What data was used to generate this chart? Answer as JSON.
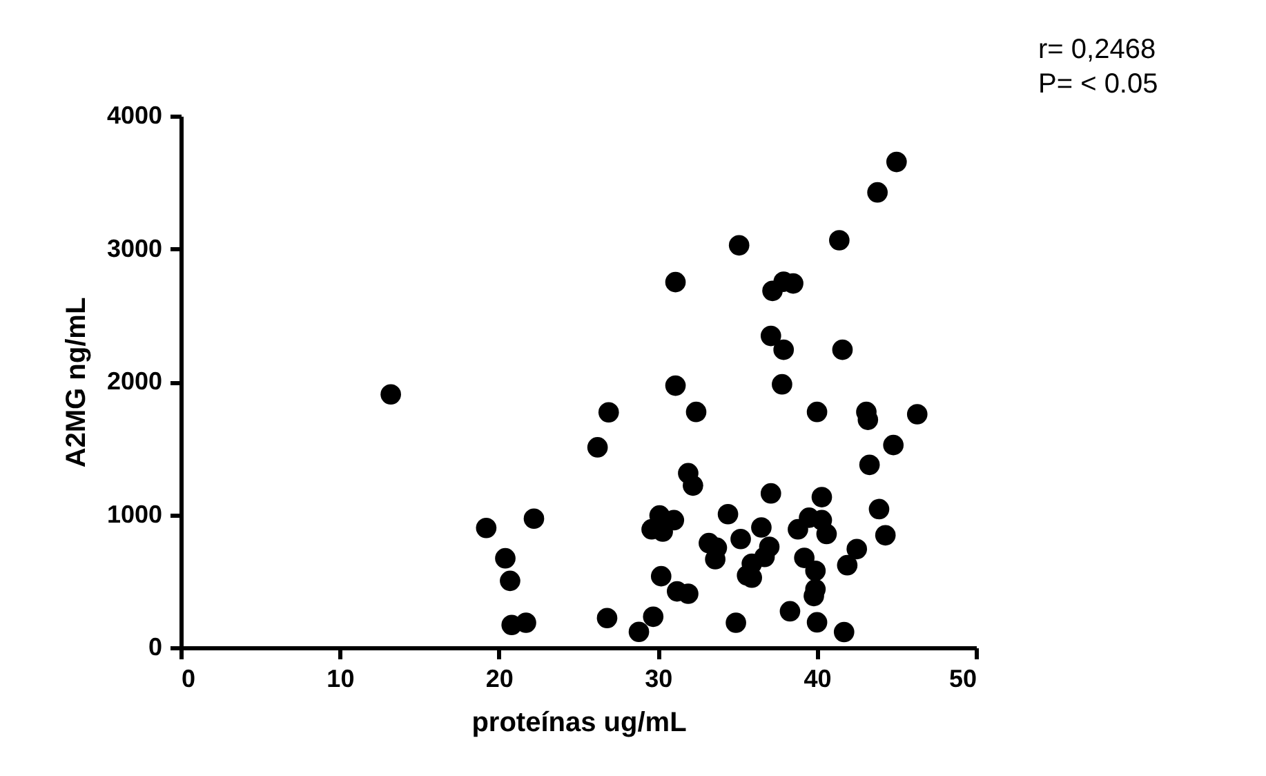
{
  "chart_data": {
    "type": "scatter",
    "xlabel": "proteínas ug/mL",
    "ylabel": "A2MG ng/mL",
    "annotations": [
      "r= 0,2468",
      "P= < 0.05"
    ],
    "xlim": [
      0,
      50
    ],
    "xticks": [
      0,
      10,
      20,
      30,
      40,
      50
    ],
    "ylim": [
      0,
      4000
    ],
    "yticks": [
      0,
      1000,
      2000,
      3000,
      4000
    ],
    "grid": false,
    "legend": false,
    "marker": "circle",
    "series": [
      {
        "color": "#000000",
        "x": [
          13.2,
          19.2,
          22.2,
          20.4,
          20.7,
          20.8,
          21.7,
          26.9,
          26.2,
          26.8,
          28.8,
          29.7,
          31.1,
          31.1,
          30.1,
          31.0,
          29.6,
          30.3,
          30.2,
          31.2,
          31.9,
          31.9,
          32.2,
          45.0,
          43.8,
          35.1,
          41.4,
          37.2,
          37.9,
          38.5,
          37.1,
          37.9,
          41.6,
          37.8,
          32.4,
          40.0,
          43.1,
          43.2,
          46.3,
          44.8,
          43.3,
          37.1,
          40.3,
          43.9,
          44.3,
          34.4,
          36.5,
          35.2,
          33.2,
          33.7,
          33.6,
          37.0,
          36.7,
          35.9,
          35.6,
          35.9,
          38.8,
          39.5,
          40.3,
          40.6,
          39.2,
          39.9,
          39.9,
          39.8,
          42.5,
          41.9,
          34.9,
          38.3,
          40.0,
          41.7
        ],
        "values": [
          1905,
          900,
          970,
          672,
          502,
          170,
          187,
          1770,
          1507,
          222,
          118,
          232,
          2750,
          1971,
          994,
          959,
          890,
          873,
          537,
          423,
          405,
          1312,
          1219,
          3654,
          3425,
          3027,
          3065,
          2684,
          2753,
          2740,
          2345,
          2241,
          2241,
          1981,
          1773,
          1773,
          1773,
          1714,
          1756,
          1524,
          1375,
          1160,
          1132,
          1042,
          845,
          1004,
          904,
          817,
          786,
          751,
          665,
          758,
          682,
          631,
          543,
          526,
          890,
          977,
          959,
          855,
          675,
          578,
          439,
          388,
          741,
          620,
          187,
          273,
          190,
          117
        ]
      }
    ]
  }
}
